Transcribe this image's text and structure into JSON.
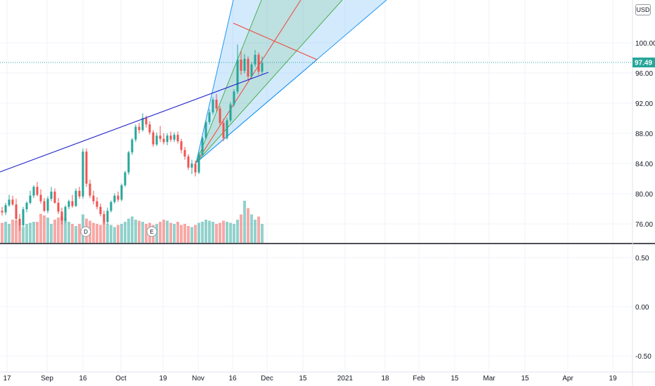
{
  "currency": "USD",
  "last_price": "97.49",
  "colors": {
    "up": "#26a69a",
    "down": "#ef5350",
    "grid": "#f0f3fa",
    "trendline": "#2a2ecb",
    "fan_blue": "#2196f3",
    "fan_green": "#4caf50",
    "fan_red": "#f44336",
    "last_price": "#26a69a"
  },
  "price_axis": {
    "labels": [
      "100.00",
      "96.00",
      "92.00",
      "88.00",
      "84.00",
      "80.00",
      "76.00"
    ]
  },
  "indicator_axis": {
    "labels": [
      "0.50",
      "0.00",
      "-0.50"
    ]
  },
  "time_axis": {
    "labels": [
      "17",
      "Sep",
      "16",
      "Oct",
      "19",
      "Nov",
      "16",
      "Dec",
      "15",
      "2021",
      "18",
      "Feb",
      "15",
      "Mar",
      "15",
      "Apr",
      "19"
    ]
  },
  "events": [
    {
      "label": "D"
    },
    {
      "label": "E"
    }
  ],
  "chart_data": {
    "type": "candlestick",
    "y_range": [
      73.5,
      103.5
    ],
    "candles": [
      [
        79.0,
        79.5,
        78.4,
        78.8
      ],
      [
        78.8,
        80.0,
        78.5,
        79.7
      ],
      [
        79.7,
        81.0,
        79.5,
        80.4
      ],
      [
        80.4,
        80.9,
        79.6,
        79.8
      ],
      [
        79.8,
        80.5,
        77.6,
        78.0
      ],
      [
        78.0,
        78.6,
        76.5,
        77.2
      ],
      [
        77.2,
        79.5,
        77.0,
        79.2
      ],
      [
        79.2,
        80.2,
        78.8,
        80.0
      ],
      [
        80.0,
        81.5,
        79.8,
        80.9
      ],
      [
        80.9,
        82.2,
        80.6,
        82.0
      ],
      [
        82.0,
        82.6,
        80.8,
        81.0
      ],
      [
        81.0,
        81.7,
        79.9,
        80.2
      ],
      [
        80.2,
        80.6,
        78.8,
        79.0
      ],
      [
        79.0,
        80.8,
        78.7,
        80.5
      ],
      [
        80.5,
        82.0,
        80.2,
        81.4
      ],
      [
        81.4,
        81.8,
        79.9,
        80.0
      ],
      [
        80.0,
        80.6,
        78.6,
        78.9
      ],
      [
        78.9,
        79.4,
        77.3,
        77.8
      ],
      [
        77.8,
        79.7,
        77.5,
        79.5
      ],
      [
        79.5,
        80.4,
        79.2,
        80.2
      ],
      [
        80.2,
        81.0,
        79.4,
        79.6
      ],
      [
        79.6,
        81.8,
        79.5,
        81.5
      ],
      [
        81.5,
        82.0,
        80.5,
        80.8
      ],
      [
        80.8,
        86.8,
        80.5,
        86.4
      ],
      [
        86.4,
        86.8,
        82.0,
        82.4
      ],
      [
        82.4,
        82.9,
        80.6,
        80.9
      ],
      [
        80.9,
        81.5,
        79.8,
        80.2
      ],
      [
        80.2,
        80.7,
        79.2,
        79.5
      ],
      [
        79.5,
        79.9,
        78.3,
        78.6
      ],
      [
        78.6,
        79.0,
        77.3,
        77.6
      ],
      [
        77.6,
        79.4,
        77.3,
        79.0
      ],
      [
        79.0,
        80.3,
        78.8,
        80.1
      ],
      [
        80.1,
        81.2,
        79.9,
        80.9
      ],
      [
        80.9,
        81.4,
        80.1,
        80.4
      ],
      [
        80.4,
        82.4,
        80.2,
        82.2
      ],
      [
        82.2,
        84.0,
        82.0,
        83.8
      ],
      [
        83.8,
        86.5,
        83.5,
        86.3
      ],
      [
        86.3,
        88.1,
        86.0,
        87.9
      ],
      [
        87.9,
        89.8,
        87.6,
        89.5
      ],
      [
        89.5,
        90.0,
        88.7,
        89.1
      ],
      [
        89.1,
        91.2,
        88.9,
        90.6
      ],
      [
        90.6,
        90.9,
        89.4,
        89.8
      ],
      [
        89.8,
        90.2,
        88.5,
        88.8
      ],
      [
        88.8,
        89.1,
        87.0,
        87.3
      ],
      [
        87.3,
        88.8,
        87.1,
        88.4
      ],
      [
        88.4,
        89.6,
        87.6,
        88.0
      ],
      [
        88.0,
        88.7,
        87.3,
        87.6
      ],
      [
        87.6,
        88.7,
        87.2,
        88.4
      ],
      [
        88.4,
        88.9,
        87.6,
        87.9
      ],
      [
        87.9,
        88.8,
        87.6,
        88.5
      ],
      [
        88.5,
        88.9,
        87.4,
        87.7
      ],
      [
        87.7,
        88.0,
        86.2,
        86.6
      ],
      [
        86.6,
        87.0,
        85.4,
        85.8
      ],
      [
        85.8,
        86.1,
        84.1,
        84.4
      ],
      [
        84.4,
        85.4,
        83.6,
        84.9
      ],
      [
        84.9,
        85.3,
        83.3,
        83.8
      ],
      [
        83.8,
        86.5,
        83.6,
        86.0
      ],
      [
        86.0,
        88.3,
        85.8,
        88.1
      ],
      [
        88.1,
        90.4,
        87.9,
        90.1
      ],
      [
        90.1,
        91.7,
        89.8,
        91.3
      ],
      [
        91.3,
        93.2,
        91.0,
        92.9
      ],
      [
        92.9,
        93.6,
        91.4,
        91.8
      ],
      [
        91.8,
        92.1,
        89.6,
        90.0
      ],
      [
        90.0,
        90.5,
        87.7,
        88.1
      ],
      [
        88.1,
        90.6,
        87.9,
        90.3
      ],
      [
        90.3,
        92.6,
        90.1,
        92.3
      ],
      [
        92.3,
        94.2,
        92.0,
        93.9
      ],
      [
        93.9,
        99.8,
        93.6,
        97.9
      ],
      [
        97.9,
        99.0,
        96.0,
        96.5
      ],
      [
        96.5,
        98.6,
        96.2,
        98.0
      ],
      [
        98.0,
        98.3,
        95.3,
        95.8
      ],
      [
        95.8,
        97.6,
        95.5,
        97.3
      ],
      [
        97.3,
        99.1,
        97.0,
        98.5
      ],
      [
        98.5,
        98.8,
        96.0,
        96.4
      ],
      [
        96.4,
        98.3,
        96.1,
        97.49
      ]
    ],
    "volume": [
      38,
      40,
      36,
      44,
      42,
      34,
      30,
      36,
      38,
      40,
      40,
      55,
      52,
      48,
      36,
      44,
      48,
      50,
      46,
      40,
      36,
      32,
      36,
      54,
      46,
      42,
      38,
      36,
      34,
      40,
      36,
      34,
      30,
      34,
      36,
      40,
      46,
      50,
      44,
      42,
      40,
      36,
      38,
      34,
      36,
      40,
      44,
      42,
      38,
      36,
      40,
      34,
      36,
      32,
      30,
      34,
      38,
      40,
      44,
      42,
      40,
      36,
      38,
      42,
      40,
      38,
      36,
      44,
      54,
      80,
      66,
      54,
      44,
      50,
      36
    ]
  }
}
